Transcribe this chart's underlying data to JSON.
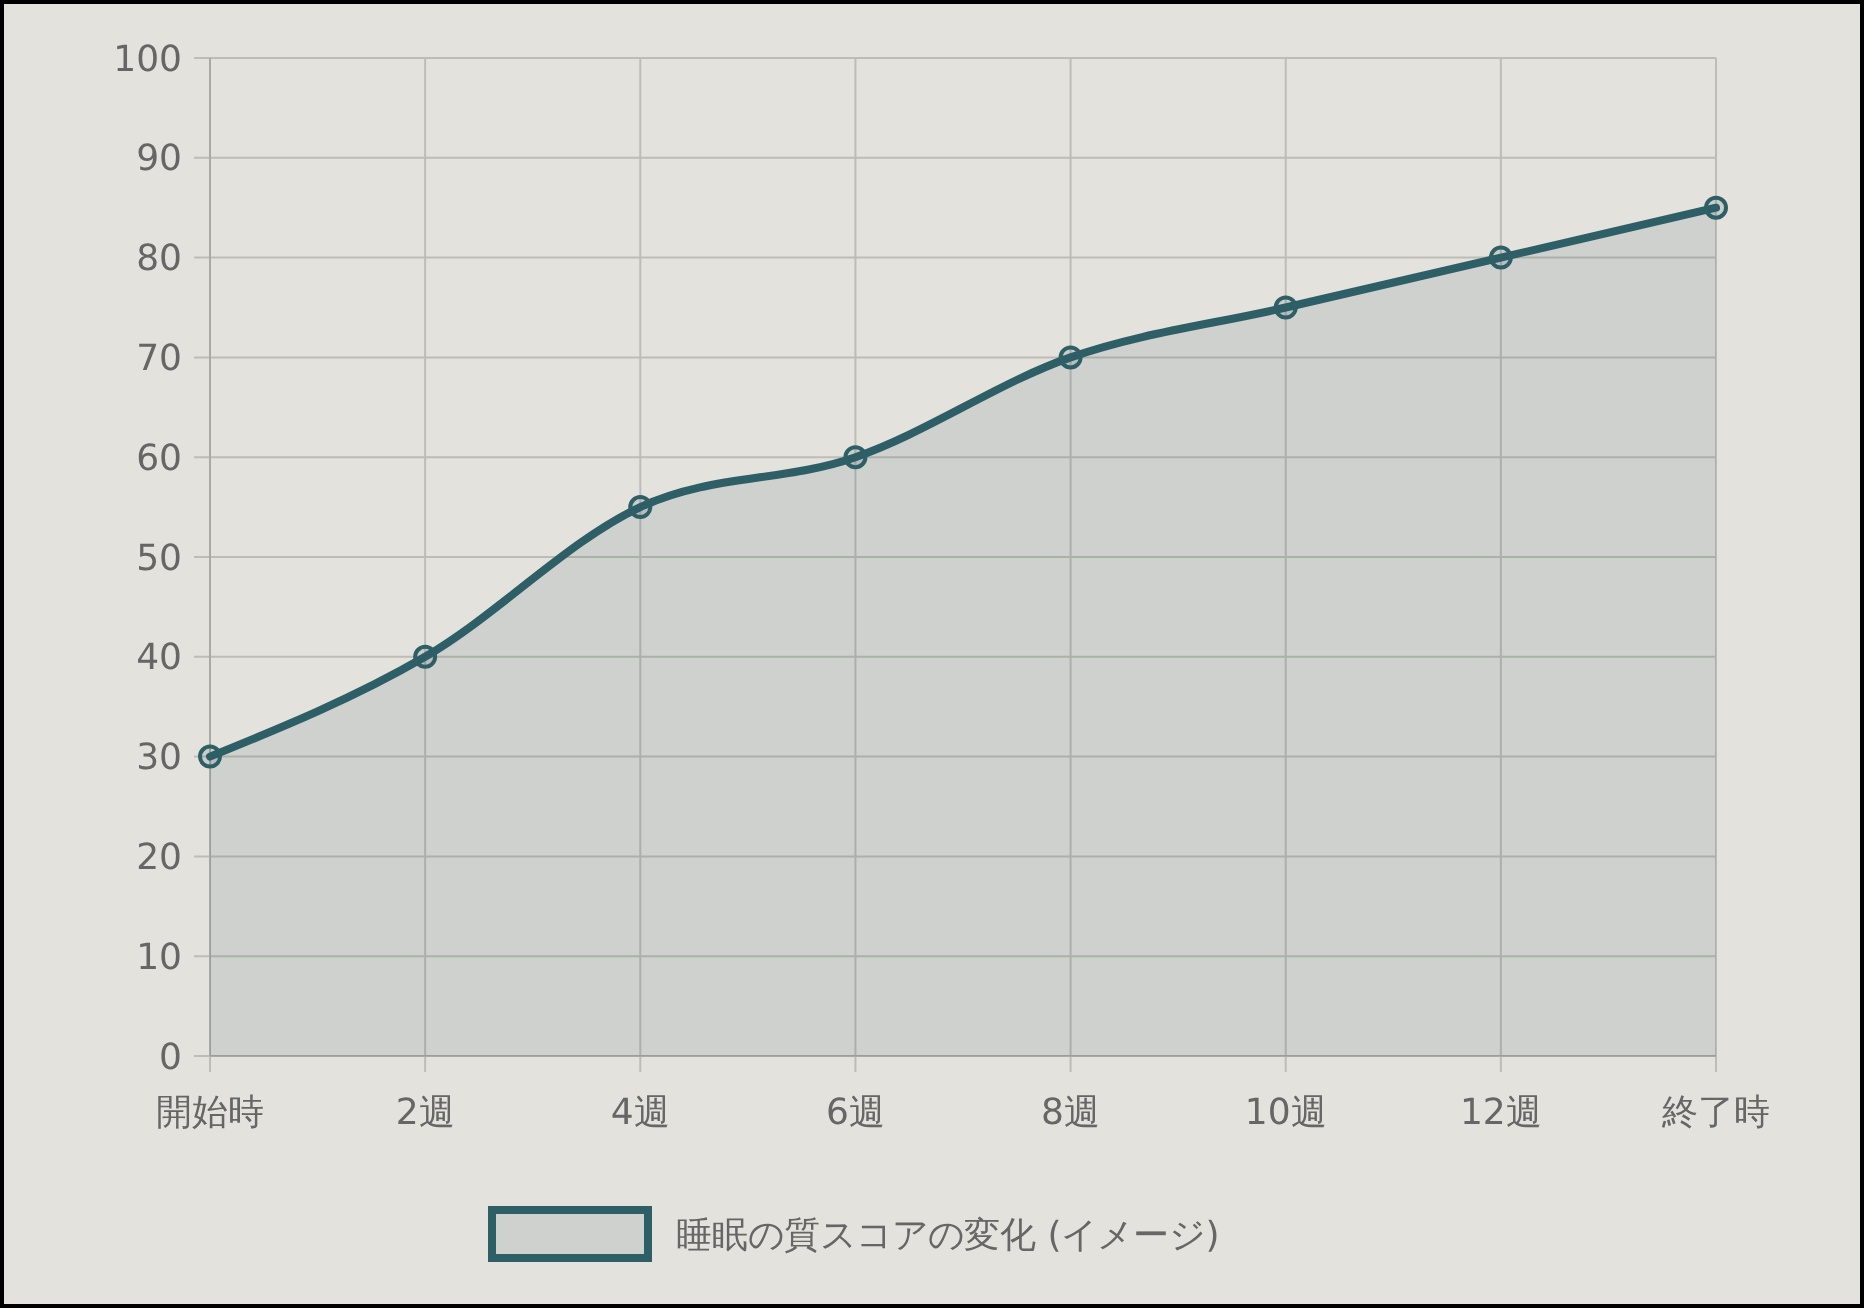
{
  "chart_data": {
    "type": "area",
    "categories": [
      "開始時",
      "2週",
      "4週",
      "6週",
      "8週",
      "10週",
      "12週",
      "終了時"
    ],
    "series": [
      {
        "name": "睡眠の質スコアの変化 (イメージ)",
        "color": "#2e5e66",
        "values": [
          30,
          40,
          55,
          60,
          70,
          75,
          80,
          85
        ]
      }
    ],
    "ylim": [
      0,
      100
    ],
    "yticks": [
      0,
      10,
      20,
      30,
      40,
      50,
      60,
      70,
      80,
      90,
      100
    ],
    "grid": true,
    "legend": "bottom",
    "marker": "circle"
  }
}
